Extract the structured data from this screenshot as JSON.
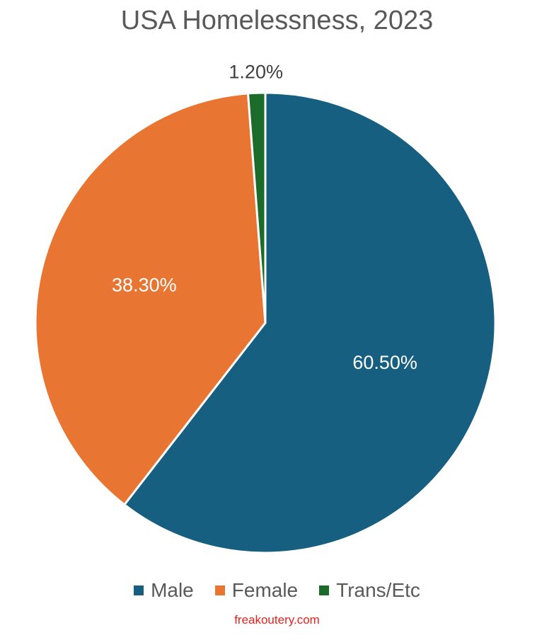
{
  "chart_data": {
    "type": "pie",
    "title": "USA Homelessness, 2023",
    "categories": [
      "Male",
      "Female",
      "Trans/Etc"
    ],
    "values": [
      60.5,
      38.3,
      1.2
    ],
    "data_labels": [
      "60.50%",
      "38.30%",
      "1.20%"
    ],
    "colors": [
      "#175f80",
      "#e97532",
      "#1b6b2a"
    ],
    "legend_position": "bottom"
  },
  "watermark": "freakoutery.com"
}
